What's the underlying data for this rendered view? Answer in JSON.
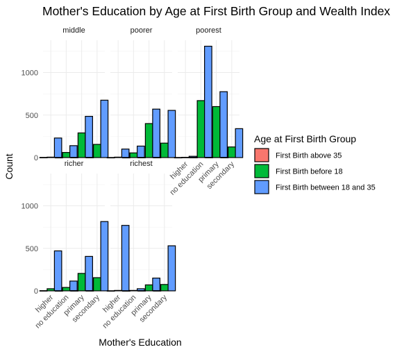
{
  "chart_data": {
    "type": "bar",
    "title": "Mother's Education by Age at First Birth Group and Wealth Index",
    "xlabel": "Mother's Education",
    "ylabel": "Count",
    "ylim": [
      0,
      1380
    ],
    "yticks": [
      0,
      500,
      1000
    ],
    "categories": [
      "higher",
      "no education",
      "primary",
      "secondary"
    ],
    "legend": {
      "title": "Age at First Birth Group",
      "position": "right",
      "items": [
        {
          "name": "First Birth above 35",
          "color": "#F8766D"
        },
        {
          "name": "First Birth before 18",
          "color": "#00BA38"
        },
        {
          "name": "First Birth between 18 and 35",
          "color": "#619CFF"
        }
      ]
    },
    "grid": true,
    "panels": [
      {
        "label": "middle",
        "values": [
          [
            2,
            5,
            230
          ],
          [
            1,
            60,
            140
          ],
          [
            2,
            290,
            485
          ],
          [
            2,
            155,
            675
          ]
        ]
      },
      {
        "label": "poorer",
        "values": [
          [
            1,
            5,
            100
          ],
          [
            1,
            55,
            135
          ],
          [
            2,
            400,
            570
          ],
          [
            2,
            170,
            555
          ]
        ]
      },
      {
        "label": "poorest",
        "values": [
          [
            1,
            3,
            15
          ],
          [
            2,
            670,
            1310
          ],
          [
            2,
            600,
            775
          ],
          [
            2,
            125,
            340
          ]
        ]
      },
      {
        "label": "richer",
        "values": [
          [
            2,
            25,
            470
          ],
          [
            1,
            40,
            115
          ],
          [
            2,
            205,
            405
          ],
          [
            2,
            155,
            815
          ]
        ]
      },
      {
        "label": "richest",
        "values": [
          [
            1,
            5,
            770
          ],
          [
            1,
            5,
            25
          ],
          [
            2,
            70,
            150
          ],
          [
            2,
            75,
            530
          ]
        ]
      }
    ]
  }
}
